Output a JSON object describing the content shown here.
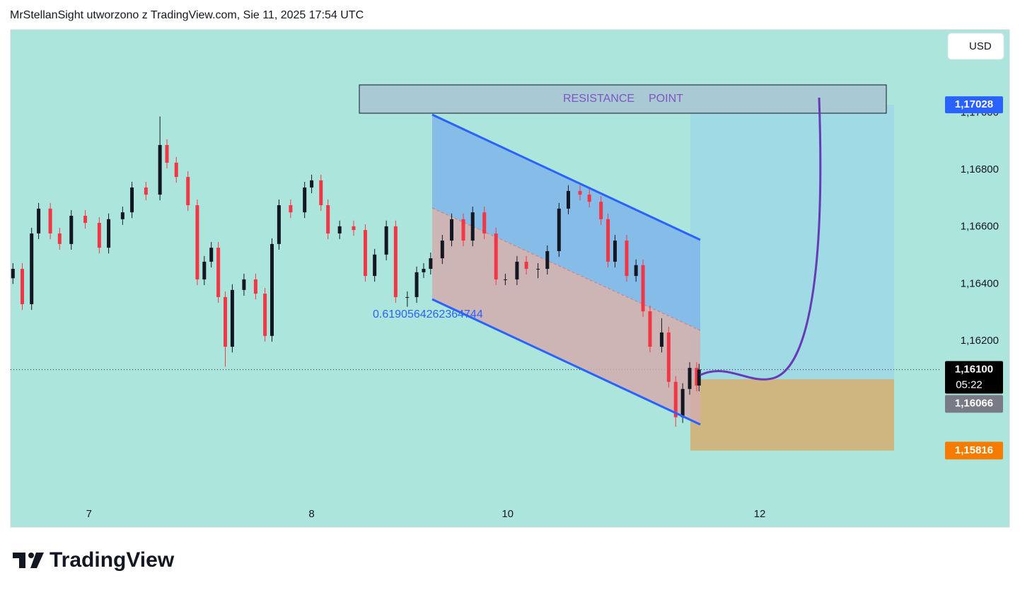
{
  "header": {
    "text": "MrStellanSight utworzono z TradingView.com, Sie 11, 2025 17:54 UTC"
  },
  "chart_data": {
    "type": "candlestick",
    "x": [
      1,
      5,
      9,
      12,
      17,
      21,
      26,
      32,
      38,
      42,
      48,
      52,
      58,
      64,
      67,
      71,
      76,
      80,
      83,
      86,
      89,
      92,
      95,
      100,
      105,
      109,
      112,
      115,
      120,
      126,
      129,
      133,
      136,
      141,
      147,
      152,
      156,
      161,
      165,
      170,
      174,
      177,
      180,
      185,
      189,
      194,
      198,
      203,
      208,
      212,
      217,
      221,
      226,
      230,
      235,
      239,
      244,
      248,
      253,
      256,
      259,
      264,
      268,
      271,
      274,
      279,
      282,
      285,
      288,
      291,
      294,
      295
    ],
    "open": [
      1.1642,
      1.16453,
      1.16329,
      1.16577,
      1.16664,
      1.16577,
      1.1654,
      1.16639,
      1.16614,
      1.16527,
      1.16627,
      1.16651,
      1.16738,
      1.16713,
      1.16887,
      1.16825,
      1.16775,
      1.16676,
      1.16416,
      1.16478,
      1.16527,
      1.16354,
      1.1618,
      1.16379,
      1.16416,
      1.16366,
      1.16218,
      1.1654,
      1.16676,
      1.16651,
      1.16738,
      1.16763,
      1.16676,
      1.16577,
      1.16602,
      1.16589,
      1.16428,
      1.16503,
      1.16602,
      1.16354,
      1.16354,
      1.16441,
      1.16453,
      1.1649,
      1.16552,
      1.16627,
      1.16552,
      1.16651,
      1.16577,
      1.16416,
      1.16416,
      1.16478,
      1.16453,
      1.16453,
      1.16515,
      1.16664,
      1.16726,
      1.16713,
      1.16688,
      1.16627,
      1.16478,
      1.16552,
      1.16428,
      1.16466,
      1.16304,
      1.1618,
      1.1623,
      1.16057,
      1.15933,
      1.16032,
      1.16106,
      1.16044
    ],
    "high": [
      1.16473,
      1.16473,
      1.16597,
      1.16684,
      1.16684,
      1.16597,
      1.16659,
      1.16659,
      1.16634,
      1.16647,
      1.16671,
      1.16758,
      1.16758,
      1.16987,
      1.16907,
      1.16845,
      1.16795,
      1.16696,
      1.16498,
      1.16547,
      1.16547,
      1.16374,
      1.16399,
      1.16436,
      1.16436,
      1.16386,
      1.1656,
      1.16696,
      1.16696,
      1.16758,
      1.16783,
      1.16783,
      1.16696,
      1.16622,
      1.16622,
      1.16609,
      1.16523,
      1.16622,
      1.16622,
      1.16374,
      1.16461,
      1.16473,
      1.1651,
      1.16572,
      1.16647,
      1.16647,
      1.16671,
      1.16671,
      1.16597,
      1.16436,
      1.16498,
      1.16498,
      1.16473,
      1.16535,
      1.16684,
      1.16746,
      1.16746,
      1.16733,
      1.16708,
      1.16647,
      1.16572,
      1.16572,
      1.16486,
      1.16486,
      1.16324,
      1.1628,
      1.1625,
      1.16077,
      1.16052,
      1.16126,
      1.16126,
      1.1612
    ],
    "low": [
      1.164,
      1.16309,
      1.16309,
      1.16557,
      1.16557,
      1.1652,
      1.1652,
      1.16594,
      1.16507,
      1.16507,
      1.16607,
      1.16631,
      1.16693,
      1.16693,
      1.16805,
      1.16755,
      1.16656,
      1.16396,
      1.16396,
      1.16458,
      1.16334,
      1.1611,
      1.1616,
      1.16359,
      1.16346,
      1.16198,
      1.16198,
      1.1652,
      1.16631,
      1.16631,
      1.16718,
      1.16656,
      1.16557,
      1.16557,
      1.16569,
      1.16408,
      1.16408,
      1.16483,
      1.16334,
      1.1632,
      1.16334,
      1.16421,
      1.16433,
      1.1647,
      1.16532,
      1.16532,
      1.16532,
      1.16557,
      1.16396,
      1.16396,
      1.16396,
      1.16433,
      1.1642,
      1.16433,
      1.16495,
      1.16644,
      1.16693,
      1.16668,
      1.16607,
      1.16458,
      1.16458,
      1.16408,
      1.16408,
      1.16284,
      1.1616,
      1.1616,
      1.16037,
      1.159,
      1.15913,
      1.16012,
      1.16024,
      1.16024
    ],
    "close": [
      1.16453,
      1.16329,
      1.16577,
      1.16664,
      1.16577,
      1.1654,
      1.16639,
      1.16614,
      1.16527,
      1.16627,
      1.16651,
      1.16738,
      1.16713,
      1.16887,
      1.16825,
      1.16775,
      1.16676,
      1.16416,
      1.16478,
      1.16527,
      1.16354,
      1.1618,
      1.16379,
      1.16416,
      1.16366,
      1.16218,
      1.1654,
      1.16676,
      1.16651,
      1.16738,
      1.16763,
      1.16676,
      1.16577,
      1.16602,
      1.16589,
      1.16428,
      1.16503,
      1.16602,
      1.16354,
      1.16354,
      1.16441,
      1.16453,
      1.1649,
      1.16552,
      1.16627,
      1.16552,
      1.16651,
      1.16577,
      1.16416,
      1.16416,
      1.16478,
      1.16453,
      1.16453,
      1.16515,
      1.16664,
      1.16726,
      1.16713,
      1.16688,
      1.16627,
      1.16478,
      1.16552,
      1.16428,
      1.16466,
      1.16304,
      1.1618,
      1.1623,
      1.16057,
      1.15933,
      1.16032,
      1.16106,
      1.16044,
      1.161
    ],
    "up_color": "#131722",
    "down_color": "#f23645",
    "xlim": [
      0,
      428
    ],
    "xticks": [
      {
        "value": 33.6,
        "label": "7"
      },
      {
        "value": 129,
        "label": "8"
      },
      {
        "value": 213,
        "label": "10"
      },
      {
        "value": 321,
        "label": "12"
      }
    ],
    "ylim": [
      1.15548,
      1.17291
    ],
    "yticks": [
      {
        "value": 1.162,
        "label": "1,16200"
      },
      {
        "value": 1.164,
        "label": "1,16400"
      },
      {
        "value": 1.166,
        "label": "1,16600"
      },
      {
        "value": 1.168,
        "label": "1,16800"
      },
      {
        "value": 1.17,
        "label": "1,17000"
      }
    ],
    "currency": "USD",
    "channel_label": "0.6190564262364744",
    "resistance": [
      "RESISTANCE",
      "POINT"
    ],
    "price_labels": {
      "target": {
        "value": 1.17028,
        "label": "1,17028"
      },
      "last": {
        "value": 1.161,
        "label": "1,16100"
      },
      "countdown": "05:22",
      "entry": {
        "value": 1.16066,
        "label": "1,16066"
      },
      "stop": {
        "value": 1.15816,
        "label": "1,15816"
      }
    }
  },
  "footer": {
    "logo": "TradingView"
  }
}
